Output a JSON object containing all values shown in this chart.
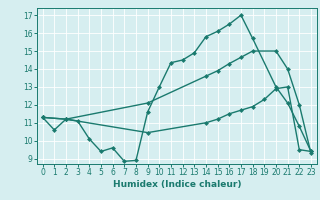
{
  "title": "",
  "xlabel": "Humidex (Indice chaleur)",
  "bg_color": "#d6eef0",
  "line_color": "#1a7a6e",
  "xlim": [
    -0.5,
    23.5
  ],
  "ylim": [
    8.7,
    17.4
  ],
  "xticks": [
    0,
    1,
    2,
    3,
    4,
    5,
    6,
    7,
    8,
    9,
    10,
    11,
    12,
    13,
    14,
    15,
    16,
    17,
    18,
    19,
    20,
    21,
    22,
    23
  ],
  "yticks": [
    9,
    10,
    11,
    12,
    13,
    14,
    15,
    16,
    17
  ],
  "line1_x": [
    0,
    1,
    2,
    3,
    4,
    5,
    6,
    7,
    8,
    9,
    10,
    11,
    12,
    13,
    14,
    15,
    16,
    17,
    18,
    20,
    21,
    22,
    23
  ],
  "line1_y": [
    11.3,
    10.6,
    11.2,
    11.1,
    10.1,
    9.4,
    9.6,
    8.85,
    8.9,
    11.6,
    13.0,
    14.35,
    14.5,
    14.9,
    15.8,
    16.1,
    16.5,
    17.0,
    15.7,
    13.0,
    12.1,
    10.8,
    9.4
  ],
  "line2_x": [
    0,
    2,
    9,
    14,
    15,
    16,
    17,
    18,
    20,
    21,
    22,
    23
  ],
  "line2_y": [
    11.3,
    11.2,
    12.1,
    13.6,
    13.9,
    14.3,
    14.65,
    15.0,
    15.0,
    14.0,
    12.0,
    9.3
  ],
  "line3_x": [
    0,
    2,
    9,
    14,
    15,
    16,
    17,
    18,
    19,
    20,
    21,
    22,
    23
  ],
  "line3_y": [
    11.3,
    11.2,
    10.45,
    11.0,
    11.2,
    11.5,
    11.7,
    11.9,
    12.3,
    12.9,
    13.0,
    9.5,
    9.4
  ]
}
